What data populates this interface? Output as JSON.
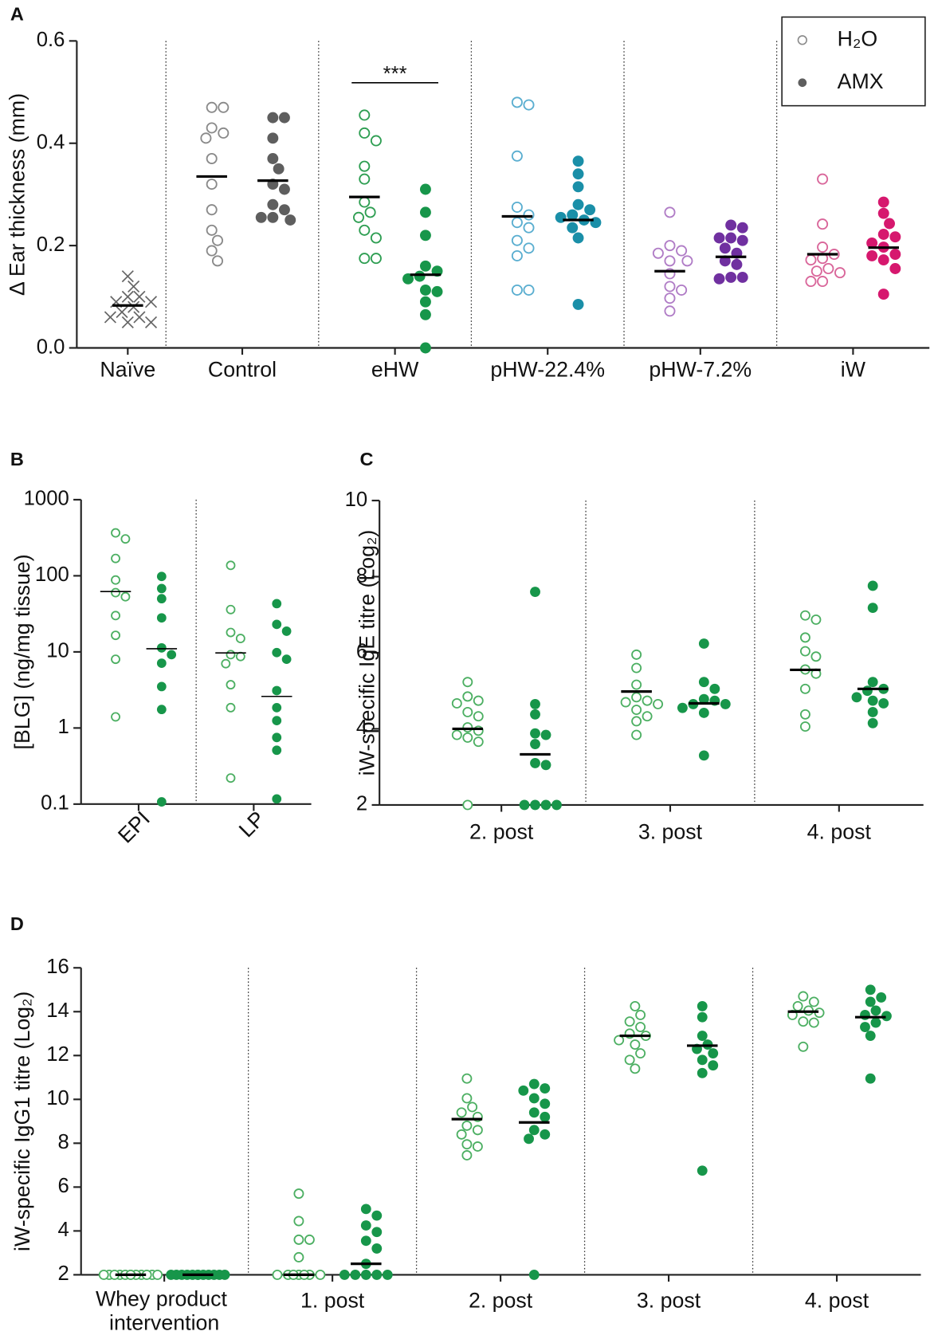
{
  "chart_data": [
    {
      "type": "dot",
      "panel": "A",
      "y_label": "Δ Ear thickness (mm)",
      "categories": [
        "Naïve",
        "Control",
        "eHW",
        "pHW-22.4%",
        "pHW-7.2%",
        "iW"
      ],
      "ylim": [
        0,
        0.6
      ],
      "yticks": [
        {
          "value": 0,
          "label": "0.0"
        },
        0.2,
        0.4,
        0.6
      ],
      "legend": "upper right",
      "significance": [
        null,
        null,
        "***",
        null,
        null,
        null
      ],
      "series": [
        {
          "name": "H₂O",
          "marker": "open",
          "colors": [
            null,
            "#8a8a8a",
            "#2e9e52",
            "#5aaed0",
            "#b07cc6",
            "#d9669a"
          ],
          "values": [
            null,
            [
              0.47,
              0.47,
              0.43,
              0.42,
              0.41,
              0.37,
              0.32,
              0.27,
              0.23,
              0.21,
              0.19,
              0.17
            ],
            [
              0.455,
              0.42,
              0.405,
              0.355,
              0.33,
              0.285,
              0.265,
              0.255,
              0.23,
              0.215,
              0.175,
              0.175
            ],
            [
              0.48,
              0.475,
              0.375,
              0.275,
              0.26,
              0.245,
              0.235,
              0.21,
              0.195,
              0.18,
              0.113,
              0.113
            ],
            [
              0.265,
              0.2,
              0.19,
              0.185,
              0.17,
              0.17,
              0.145,
              0.12,
              0.113,
              0.097,
              0.072
            ],
            [
              0.33,
              0.242,
              0.197,
              0.183,
              0.175,
              0.172,
              0.155,
              0.15,
              0.147,
              0.13,
              0.13
            ]
          ],
          "medians": [
            null,
            0.335,
            0.295,
            0.257,
            0.15,
            0.183
          ]
        },
        {
          "name": "AMX",
          "marker": "filled",
          "colors": [
            null,
            "#5e5e5e",
            "#17964a",
            "#1a8fa8",
            "#7030a0",
            "#d6186e"
          ],
          "values": [
            null,
            [
              0.45,
              0.45,
              0.41,
              0.37,
              0.35,
              0.32,
              0.31,
              0.28,
              0.27,
              0.255,
              0.255,
              0.25
            ],
            [
              0.31,
              0.265,
              0.22,
              0.16,
              0.15,
              0.14,
              0.135,
              0.113,
              0.11,
              0.09,
              0.065,
              0.0
            ],
            [
              0.365,
              0.34,
              0.315,
              0.28,
              0.27,
              0.26,
              0.255,
              0.25,
              0.245,
              0.235,
              0.215,
              0.085
            ],
            [
              0.24,
              0.235,
              0.215,
              0.215,
              0.21,
              0.195,
              0.185,
              0.17,
              0.163,
              0.138,
              0.138,
              0.135
            ],
            [
              0.285,
              0.263,
              0.243,
              0.222,
              0.217,
              0.205,
              0.197,
              0.183,
              0.18,
              0.172,
              0.155,
              0.105
            ]
          ],
          "medians": [
            null,
            0.327,
            0.143,
            0.25,
            0.178,
            0.196
          ]
        },
        {
          "marker": "cross",
          "color": "#666666",
          "values": [
            [
              0.14,
              0.12,
              0.1,
              0.1,
              0.09,
              0.09,
              0.08,
              0.07,
              0.06,
              0.06,
              0.05,
              0.05
            ],
            null,
            null,
            null,
            null,
            null
          ],
          "medians": [
            0.083,
            null,
            null,
            null,
            null,
            null
          ]
        }
      ]
    },
    {
      "type": "dot",
      "panel": "B",
      "y_label": "[BLG] (ng/mg tissue)",
      "categories": [
        "EPI",
        "LP"
      ],
      "log": true,
      "ylim": [
        0.1,
        1000
      ],
      "yticks": [
        0.1,
        1,
        10,
        100,
        1000
      ],
      "series": [
        {
          "marker": "open",
          "color": "#4caf62",
          "values": [
            [
              366,
              305,
              169,
              88,
              60,
              53,
              30,
              16.5,
              8,
              1.4
            ],
            [
              137,
              36,
              18,
              15,
              9.2,
              8.7,
              7,
              3.7,
              1.85,
              0.22
            ]
          ],
          "medians": [
            62,
            9.7
          ]
        },
        {
          "marker": "filled",
          "color": "#17964a",
          "values": [
            [
              98,
              68,
              50,
              28,
              11.3,
              9.2,
              7.1,
              3.5,
              1.75,
              0.107
            ],
            [
              43,
              23,
              18.7,
              9.8,
              8,
              3.1,
              1.85,
              1.25,
              0.75,
              0.51,
              0.117
            ]
          ],
          "medians": [
            11,
            2.6
          ]
        }
      ]
    },
    {
      "type": "dot",
      "panel": "C",
      "y_label": "iW-specific IgE titre (Log₂)",
      "categories": [
        "2. post",
        "3. post",
        "4. post"
      ],
      "ylim": [
        2,
        10
      ],
      "yticks": [
        2,
        4,
        6,
        8,
        10
      ],
      "series": [
        {
          "marker": "open",
          "color": "#4caf62",
          "values": [
            [
              5.23,
              4.85,
              4.74,
              4.67,
              4.44,
              4.33,
              4.04,
              3.95,
              3.84,
              3.77,
              3.66,
              2.0
            ],
            [
              5.95,
              5.6,
              5.16,
              4.83,
              4.74,
              4.7,
              4.65,
              4.5,
              4.33,
              4.2,
              3.84
            ],
            [
              6.98,
              6.87,
              6.4,
              6.04,
              5.9,
              5.56,
              5.45,
              5.05,
              4.38,
              4.06
            ]
          ],
          "medians": [
            4.0,
            4.98,
            5.55
          ]
        },
        {
          "marker": "filled",
          "color": "#17964a",
          "values": [
            [
              7.6,
              4.65,
              4.38,
              3.88,
              3.84,
              3.6,
              3.1,
              3.05,
              2,
              2,
              2,
              2
            ],
            [
              6.24,
              5.23,
              5.05,
              4.78,
              4.74,
              4.65,
              4.65,
              4.55,
              4.42,
              3.3
            ],
            [
              7.76,
              7.18,
              5.23,
              5.05,
              5.0,
              4.83,
              4.74,
              4.67,
              4.44,
              4.15
            ]
          ],
          "medians": [
            3.33,
            4.67,
            5.05
          ]
        }
      ]
    },
    {
      "type": "dot",
      "panel": "D",
      "y_label": "iW-specific IgG1 titre (Log₂)",
      "categories": [
        "Whey product intervention",
        "1. post",
        "2. post",
        "3. post",
        "4. post"
      ],
      "ylim": [
        2,
        16
      ],
      "yticks": [
        2,
        4,
        6,
        8,
        10,
        12,
        14,
        16
      ],
      "series": [
        {
          "marker": "open",
          "color": "#4caf62",
          "values": [
            [
              2,
              2,
              2,
              2,
              2,
              2,
              2,
              2,
              2,
              2,
              2,
              2
            ],
            [
              5.7,
              4.45,
              3.6,
              3.6,
              2.8,
              2,
              2,
              2,
              2,
              2,
              2,
              2
            ],
            [
              10.95,
              10.05,
              9.65,
              9.4,
              9.2,
              8.8,
              8.6,
              8.4,
              7.95,
              7.85,
              7.45
            ],
            [
              14.25,
              13.85,
              13.55,
              13.3,
              13.0,
              12.9,
              12.7,
              12.5,
              12.1,
              11.8,
              11.4
            ],
            [
              14.7,
              14.45,
              14.25,
              14.05,
              13.95,
              13.85,
              13.55,
              13.5,
              12.4
            ]
          ],
          "medians": [
            2,
            2,
            9.1,
            12.9,
            14.0
          ]
        },
        {
          "marker": "filled",
          "color": "#17964a",
          "values": [
            [
              2,
              2,
              2,
              2,
              2,
              2,
              2,
              2,
              2,
              2,
              2,
              2
            ],
            [
              5.0,
              4.7,
              4.25,
              3.95,
              3.55,
              3.2,
              2.5,
              2,
              2,
              2,
              2,
              2
            ],
            [
              10.7,
              10.5,
              10.4,
              10.05,
              9.8,
              9.4,
              9.2,
              8.6,
              8.4,
              8.2,
              2
            ],
            [
              14.25,
              13.75,
              12.9,
              12.5,
              12.3,
              12.1,
              11.8,
              11.55,
              11.2,
              6.75
            ],
            [
              15.0,
              14.65,
              14.45,
              14.05,
              13.85,
              13.8,
              13.5,
              13.3,
              12.9,
              10.95
            ]
          ],
          "medians": [
            2,
            2.5,
            8.95,
            12.45,
            13.75
          ]
        }
      ]
    }
  ]
}
